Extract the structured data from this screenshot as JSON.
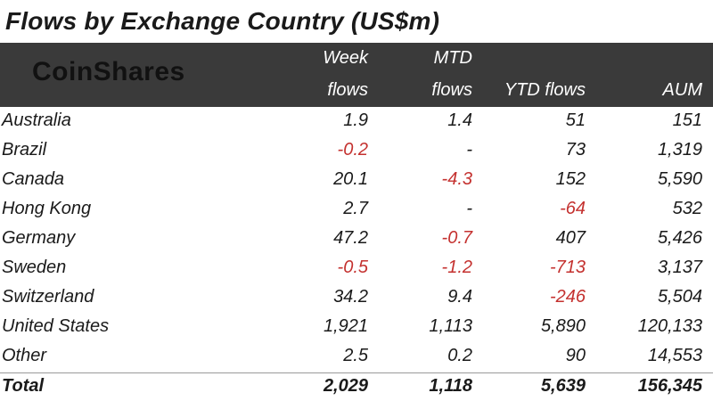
{
  "title": "Flows by Exchange Country (US$m)",
  "brand": "CoinShares",
  "colors": {
    "header_bg": "#3a3a3a",
    "negative": "#c4312f",
    "text": "#1a1a1a"
  },
  "columns": {
    "week_line1": "Week",
    "week_line2": "flows",
    "mtd_line1": "MTD",
    "mtd_line2": "flows",
    "ytd": "YTD flows",
    "aum": "AUM"
  },
  "chart_data": {
    "type": "table",
    "title": "Flows by Exchange Country (US$m)",
    "headers": [
      "",
      "Week flows",
      "MTD flows",
      "YTD flows",
      "AUM"
    ],
    "rows": [
      {
        "country": "Australia",
        "week": "1.9",
        "mtd": "1.4",
        "ytd": "51",
        "aum": "151"
      },
      {
        "country": "Brazil",
        "week": "-0.2",
        "mtd": "-",
        "ytd": "73",
        "aum": "1,319"
      },
      {
        "country": "Canada",
        "week": "20.1",
        "mtd": "-4.3",
        "ytd": "152",
        "aum": "5,590"
      },
      {
        "country": "Hong Kong",
        "week": "2.7",
        "mtd": "-",
        "ytd": "-64",
        "aum": "532"
      },
      {
        "country": "Germany",
        "week": "47.2",
        "mtd": "-0.7",
        "ytd": "407",
        "aum": "5,426"
      },
      {
        "country": "Sweden",
        "week": "-0.5",
        "mtd": "-1.2",
        "ytd": "-713",
        "aum": "3,137"
      },
      {
        "country": "Switzerland",
        "week": "34.2",
        "mtd": "9.4",
        "ytd": "-246",
        "aum": "5,504"
      },
      {
        "country": "United States",
        "week": "1,921",
        "mtd": "1,113",
        "ytd": "5,890",
        "aum": "120,133"
      },
      {
        "country": "Other",
        "week": "2.5",
        "mtd": "0.2",
        "ytd": "90",
        "aum": "14,553"
      }
    ],
    "total": {
      "country": "Total",
      "week": "2,029",
      "mtd": "1,118",
      "ytd": "5,639",
      "aum": "156,345"
    }
  }
}
